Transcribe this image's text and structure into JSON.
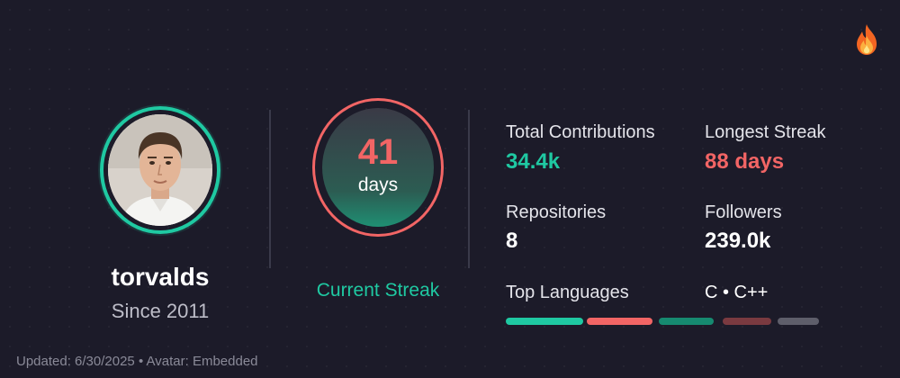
{
  "profile": {
    "username": "torvalds",
    "since": "Since 2011"
  },
  "streak": {
    "current_value": "41",
    "current_unit": "days",
    "label": "Current Streak"
  },
  "stats": {
    "total_contributions": {
      "label": "Total Contributions",
      "value": "34.4k"
    },
    "longest_streak": {
      "label": "Longest Streak",
      "value": "88 days"
    },
    "repositories": {
      "label": "Repositories",
      "value": "8"
    },
    "followers": {
      "label": "Followers",
      "value": "239.0k"
    }
  },
  "languages": {
    "label": "Top Languages",
    "list": "C • C++",
    "bars": [
      {
        "color": "#1fc9a2"
      },
      {
        "color": "#f26565"
      },
      {
        "color": "#168a70"
      },
      {
        "color": "#7a3a40"
      },
      {
        "color": "#5e5e6a"
      }
    ]
  },
  "footer": {
    "text": "Updated: 6/30/2025 • Avatar: Embedded"
  },
  "colors": {
    "accent": "#1fc9a2",
    "highlight": "#f26565",
    "background": "#1c1b29"
  },
  "icons": {
    "top_right": "fire-icon"
  }
}
